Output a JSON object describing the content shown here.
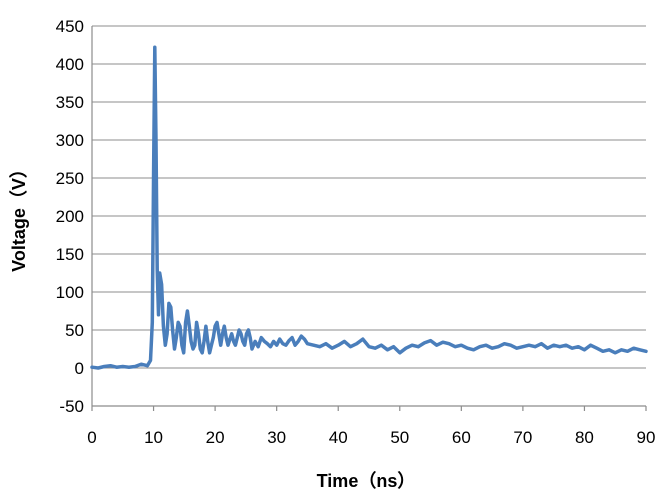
{
  "chart_data": {
    "type": "line",
    "xlabel": "Time（ns）",
    "ylabel": "Voltage（V）",
    "xlim": [
      0,
      90
    ],
    "ylim": [
      -50,
      450
    ],
    "xticks": [
      "0",
      "10",
      "20",
      "30",
      "40",
      "50",
      "60",
      "70",
      "80",
      "90"
    ],
    "yticks": [
      "-50",
      "0",
      "50",
      "100",
      "150",
      "200",
      "250",
      "300",
      "350",
      "400",
      "450"
    ],
    "grid": "horizontal",
    "legend": "none",
    "line_color": "#4a7ebb",
    "series": [
      {
        "x": [
          0,
          1,
          2,
          3,
          4,
          5,
          6,
          7,
          8,
          9,
          9.5,
          9.8,
          10.0,
          10.2,
          10.4,
          10.6,
          10.8,
          11.0,
          11.3,
          11.6,
          11.9,
          12.2,
          12.5,
          12.8,
          13.1,
          13.4,
          13.7,
          14.0,
          14.3,
          14.6,
          14.9,
          15.2,
          15.5,
          15.8,
          16.1,
          16.4,
          16.7,
          17.0,
          17.3,
          17.6,
          17.9,
          18.2,
          18.5,
          18.8,
          19.1,
          19.4,
          19.7,
          20.0,
          20.3,
          20.6,
          20.9,
          21.2,
          21.5,
          21.8,
          22.1,
          22.4,
          22.7,
          23.0,
          23.3,
          23.6,
          23.9,
          24.2,
          24.5,
          24.8,
          25.1,
          25.4,
          25.7,
          26.0,
          26.5,
          27,
          27.5,
          28,
          28.5,
          29,
          29.5,
          30,
          30.5,
          31,
          31.5,
          32,
          32.5,
          33,
          33.5,
          34,
          34.5,
          35,
          36,
          37,
          38,
          39,
          40,
          41,
          42,
          43,
          44,
          45,
          46,
          47,
          48,
          49,
          50,
          51,
          52,
          53,
          54,
          55,
          56,
          57,
          58,
          59,
          60,
          61,
          62,
          63,
          64,
          65,
          66,
          67,
          68,
          69,
          70,
          71,
          72,
          73,
          74,
          75,
          76,
          77,
          78,
          79,
          80,
          81,
          82,
          83,
          84,
          85,
          86,
          87,
          88,
          89,
          90
        ],
        "y": [
          1,
          0,
          2,
          3,
          1,
          2,
          1,
          2,
          5,
          3,
          10,
          60,
          260,
          422,
          300,
          130,
          70,
          125,
          110,
          55,
          30,
          45,
          85,
          80,
          50,
          25,
          40,
          60,
          55,
          30,
          20,
          60,
          75,
          55,
          35,
          25,
          30,
          60,
          45,
          25,
          20,
          35,
          55,
          35,
          20,
          30,
          40,
          55,
          60,
          45,
          30,
          45,
          55,
          40,
          30,
          38,
          45,
          35,
          30,
          40,
          50,
          45,
          35,
          30,
          45,
          50,
          40,
          25,
          35,
          28,
          40,
          35,
          32,
          28,
          35,
          30,
          38,
          32,
          30,
          36,
          40,
          30,
          35,
          42,
          38,
          32,
          30,
          28,
          32,
          26,
          30,
          35,
          28,
          32,
          38,
          28,
          26,
          30,
          24,
          28,
          20,
          26,
          30,
          28,
          33,
          36,
          30,
          34,
          32,
          28,
          30,
          26,
          24,
          28,
          30,
          26,
          28,
          32,
          30,
          26,
          28,
          30,
          28,
          32,
          26,
          30,
          28,
          30,
          26,
          28,
          24,
          30,
          26,
          22,
          24,
          20,
          24,
          22,
          26,
          24,
          22
        ]
      }
    ]
  }
}
